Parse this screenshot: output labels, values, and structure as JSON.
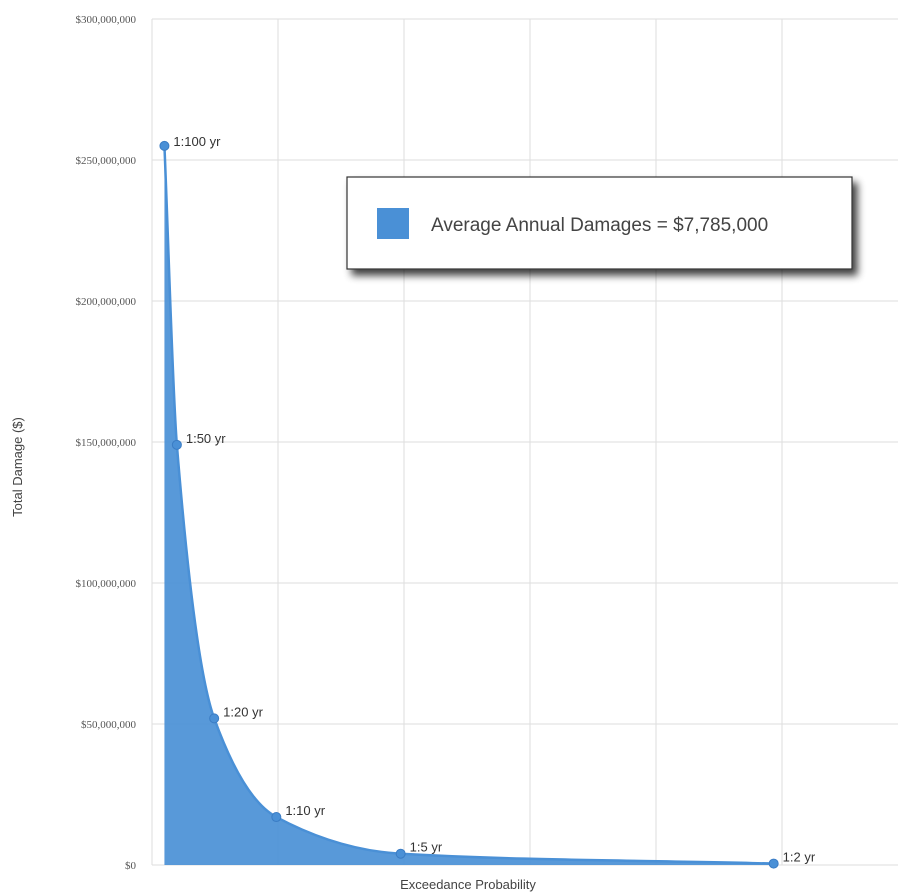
{
  "chart_data": {
    "type": "area",
    "title": "",
    "xlabel": "Exceedance Probability",
    "ylabel": "Total Damage ($)",
    "ylim": [
      0,
      300000000
    ],
    "yticks": [
      {
        "value": 0,
        "label": "$0"
      },
      {
        "value": 50000000,
        "label": "$50,000,000"
      },
      {
        "value": 100000000,
        "label": "$100,000,000"
      },
      {
        "value": 150000000,
        "label": "$150,000,000"
      },
      {
        "value": 200000000,
        "label": "$200,000,000"
      },
      {
        "value": 250000000,
        "label": "$250,000,000"
      },
      {
        "value": 300000000,
        "label": "$300,000,000"
      }
    ],
    "xlim": [
      0,
      0.6
    ],
    "grid": true,
    "series": [
      {
        "color": "#4a90d6",
        "points": [
          {
            "label": "1:100 yr",
            "x": 0.01,
            "y": 255000000
          },
          {
            "label": "1:50 yr",
            "x": 0.02,
            "y": 149000000
          },
          {
            "label": "1:20 yr",
            "x": 0.05,
            "y": 52000000
          },
          {
            "label": "1:10 yr",
            "x": 0.1,
            "y": 17000000
          },
          {
            "label": "1:5 yr",
            "x": 0.2,
            "y": 4000000
          },
          {
            "label": "1:2 yr",
            "x": 0.5,
            "y": 500000
          }
        ]
      }
    ],
    "legend": {
      "text": "Average Annual Damages = $7,785,000",
      "color": "#4a90d6",
      "position": "top-right"
    }
  }
}
